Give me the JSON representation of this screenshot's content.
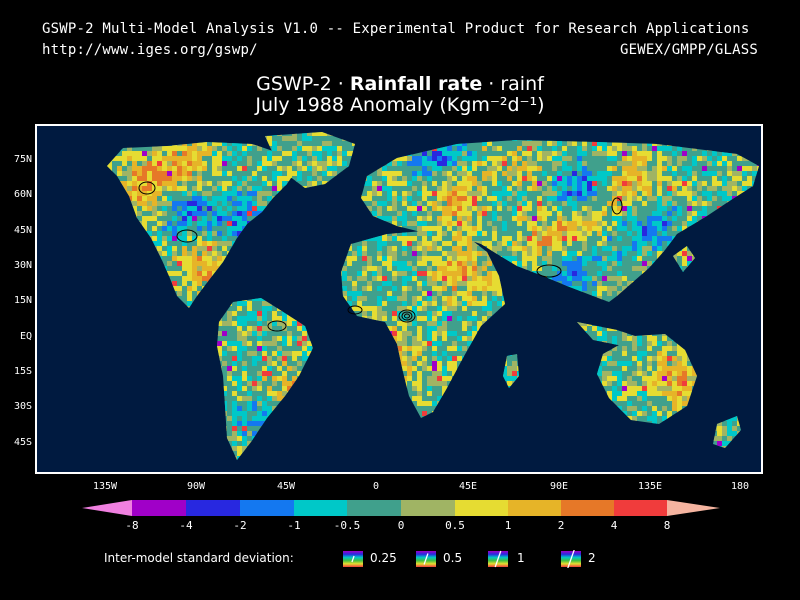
{
  "header": {
    "line1": "GSWP-2 Multi-Model Analysis V1.0 -- Experimental Product for Research Applications",
    "url": "http://www.iges.org/gswp/",
    "org": "GEWEX/GMPP/GLASS"
  },
  "title": {
    "prefix": "GSWP-2 · ",
    "bold": "Rainfall rate",
    "suffix": " · rainf",
    "line2": "July 1988 Anomaly (Kgm⁻²d⁻¹)"
  },
  "axes": {
    "lat_labels": [
      "75N",
      "60N",
      "45N",
      "30N",
      "15N",
      "EQ",
      "15S",
      "30S",
      "45S"
    ],
    "lon_labels": [
      "135W",
      "90W",
      "45W",
      "0",
      "45E",
      "90E",
      "135E",
      "180"
    ]
  },
  "colorbar": {
    "labels": [
      "-8",
      "-4",
      "-2",
      "-1",
      "-0.5",
      "0",
      "0.5",
      "1",
      "2",
      "4",
      "8"
    ],
    "colors": {
      "below_min": "#f080e0",
      "bins": [
        "#a000c8",
        "#2828e0",
        "#1478f0",
        "#00c8c8",
        "#40a08c",
        "#a0b464",
        "#e6dc32",
        "#e6b428",
        "#e67828",
        "#f03c3c"
      ],
      "above_max": "#f5b4a0"
    }
  },
  "sd_legend": {
    "label": "Inter-model standard deviation:",
    "values": [
      "0.25",
      "0.5",
      "1",
      "2"
    ]
  },
  "colors": {
    "ocean": "#001a40",
    "land_neutral": "#40a08c"
  }
}
